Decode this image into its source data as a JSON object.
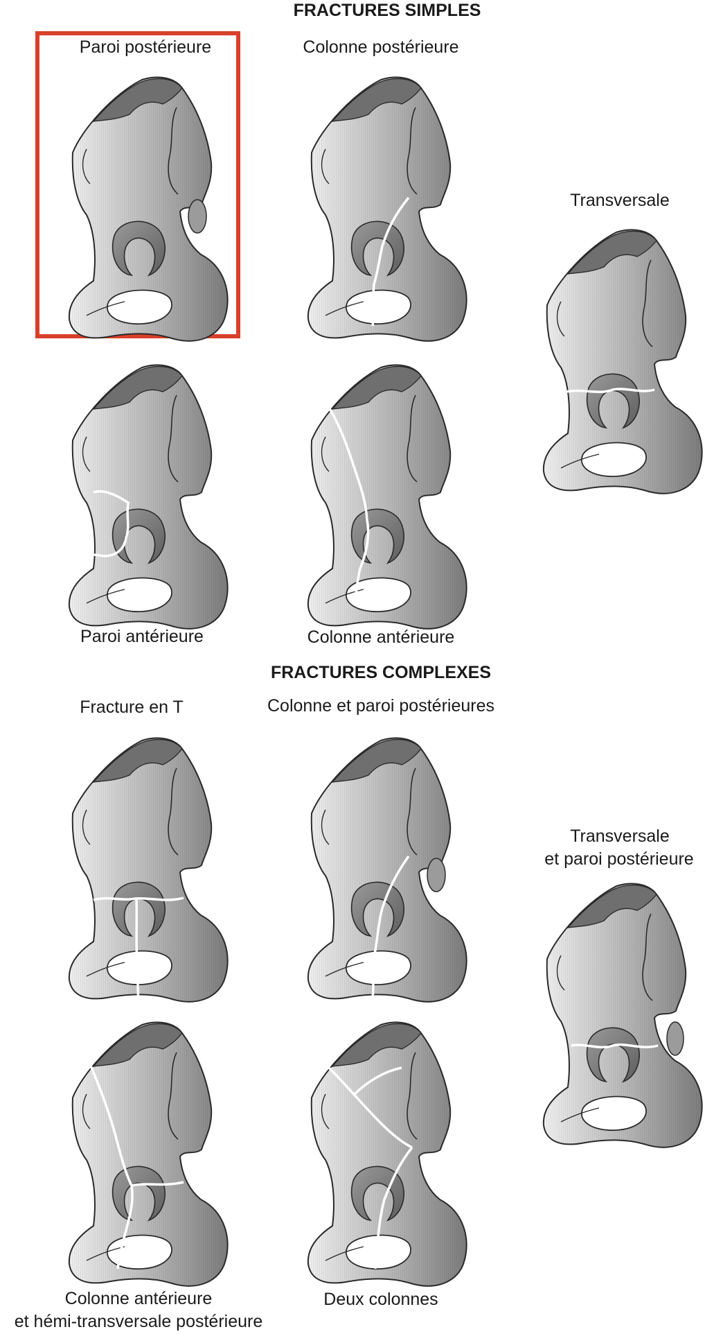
{
  "sections": {
    "simple": {
      "heading": "FRACTURES SIMPLES",
      "items": [
        {
          "label": "Paroi postérieure",
          "highlighted": true
        },
        {
          "label": "Colonne postérieure"
        },
        {
          "label": "Transversale"
        },
        {
          "label": "Paroi antérieure"
        },
        {
          "label": "Colonne antérieure"
        }
      ]
    },
    "complex": {
      "heading": "FRACTURES COMPLEXES",
      "items": [
        {
          "label": "Fracture en T"
        },
        {
          "label": "Colonne et paroi postérieures"
        },
        {
          "label": "Transversale"
        },
        {
          "label": "et paroi postérieure"
        },
        {
          "label": "Colonne antérieure"
        },
        {
          "label": "et hémi-transversale postérieure"
        },
        {
          "label": "Deux colonnes"
        }
      ]
    }
  },
  "colors": {
    "highlight": "#d9402b",
    "bone_light": "#eeeeee",
    "bone_dark": "#7d7d7d",
    "crest": "#6f6f6f",
    "fracture_line": "#ffffff"
  }
}
